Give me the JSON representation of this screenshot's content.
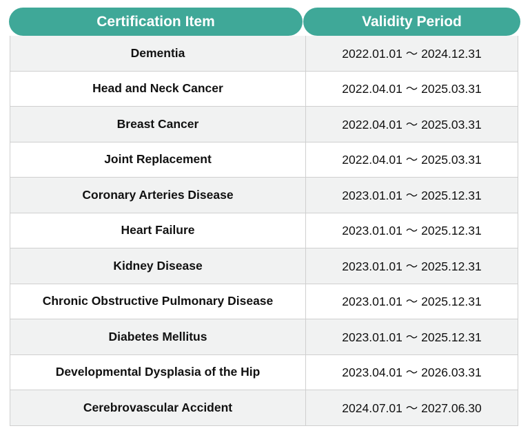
{
  "header": {
    "item": "Certification Item",
    "period": "Validity Period"
  },
  "accent_color": "#3fa898",
  "rows": [
    {
      "item": "Dementia",
      "period": "2022.01.01 ～ 2024.12.31"
    },
    {
      "item": "Head and Neck Cancer",
      "period": "2022.04.01 ～ 2025.03.31"
    },
    {
      "item": "Breast Cancer",
      "period": "2022.04.01 ～ 2025.03.31"
    },
    {
      "item": "Joint Replacement",
      "period": "2022.04.01 ～ 2025.03.31"
    },
    {
      "item": "Coronary Arteries Disease",
      "period": "2023.01.01 ～ 2025.12.31"
    },
    {
      "item": "Heart Failure",
      "period": "2023.01.01 ～ 2025.12.31"
    },
    {
      "item": "Kidney Disease",
      "period": "2023.01.01 ～ 2025.12.31"
    },
    {
      "item": "Chronic Obstructive Pulmonary Disease",
      "period": "2023.01.01 ～ 2025.12.31"
    },
    {
      "item": "Diabetes Mellitus",
      "period": "2023.01.01 ～ 2025.12.31"
    },
    {
      "item": "Developmental Dysplasia of the Hip",
      "period": "2023.04.01 ～ 2026.03.31"
    },
    {
      "item": "Cerebrovascular Accident",
      "period": "2024.07.01 ～ 2027.06.30"
    }
  ]
}
